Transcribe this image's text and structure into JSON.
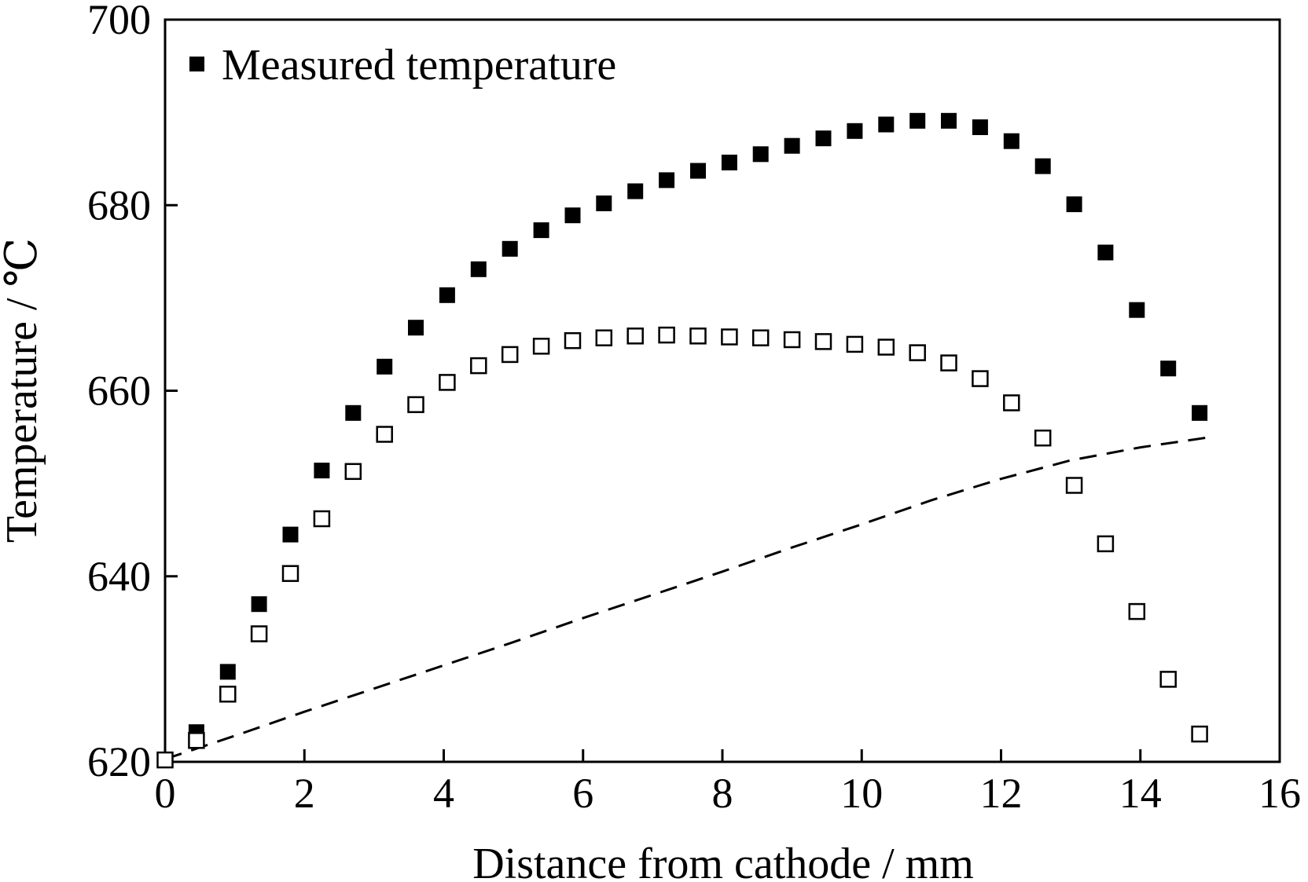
{
  "chart_data": {
    "type": "scatter",
    "title": "",
    "xlabel": "Distance from cathode / mm",
    "ylabel": "Temperature / ℃",
    "xlim": [
      0,
      16
    ],
    "ylim": [
      620,
      700
    ],
    "xticks": [
      "0",
      "2",
      "4",
      "6",
      "8",
      "10",
      "12",
      "14",
      "16"
    ],
    "yticks": [
      "620",
      "640",
      "660",
      "680",
      "700"
    ],
    "grid": false,
    "legend": {
      "placement": "top-left",
      "entries": [
        "Measured temperature"
      ]
    },
    "series": [
      {
        "name": "Measured temperature",
        "marker": "filled-square",
        "x": [
          0,
          0.45,
          0.9,
          1.35,
          1.8,
          2.25,
          2.7,
          3.15,
          3.6,
          4.05,
          4.5,
          4.95,
          5.4,
          5.85,
          6.3,
          6.75,
          7.2,
          7.65,
          8.1,
          8.55,
          9.0,
          9.45,
          9.9,
          10.35,
          10.8,
          11.25,
          11.7,
          12.15,
          12.6,
          13.05,
          13.5,
          13.95,
          14.4,
          14.85
        ],
        "y": [
          620.2,
          623.2,
          629.7,
          637.0,
          644.5,
          651.4,
          657.6,
          662.6,
          666.8,
          670.3,
          673.1,
          675.3,
          677.3,
          678.9,
          680.2,
          681.5,
          682.7,
          683.7,
          684.6,
          685.5,
          686.4,
          687.2,
          688.0,
          688.7,
          689.1,
          689.1,
          688.4,
          686.9,
          684.2,
          680.1,
          674.9,
          668.7,
          662.4,
          657.6
        ]
      },
      {
        "marker": "open-square",
        "x": [
          0,
          0.45,
          0.9,
          1.35,
          1.8,
          2.25,
          2.7,
          3.15,
          3.6,
          4.05,
          4.5,
          4.95,
          5.4,
          5.85,
          6.3,
          6.75,
          7.2,
          7.65,
          8.1,
          8.55,
          9.0,
          9.45,
          9.9,
          10.35,
          10.8,
          11.25,
          11.7,
          12.15,
          12.6,
          13.05,
          13.5,
          13.95,
          14.4,
          14.85
        ],
        "y": [
          620.2,
          622.3,
          627.3,
          633.8,
          640.3,
          646.2,
          651.3,
          655.3,
          658.5,
          660.9,
          662.7,
          663.9,
          664.8,
          665.4,
          665.7,
          665.9,
          666.0,
          665.9,
          665.8,
          665.7,
          665.5,
          665.3,
          665.0,
          664.7,
          664.1,
          663.0,
          661.3,
          658.7,
          654.9,
          649.8,
          643.5,
          636.2,
          628.9,
          623.0
        ]
      },
      {
        "marker": "dashed-line",
        "x": [
          0,
          1,
          2,
          3,
          4,
          5,
          6,
          7,
          8,
          9,
          10,
          11,
          12,
          13,
          14,
          15
        ],
        "y": [
          620.3,
          622.8,
          625.4,
          627.9,
          630.4,
          632.9,
          635.5,
          638.0,
          640.5,
          643.1,
          645.6,
          648.2,
          650.5,
          652.5,
          653.9,
          655.0
        ]
      }
    ]
  }
}
